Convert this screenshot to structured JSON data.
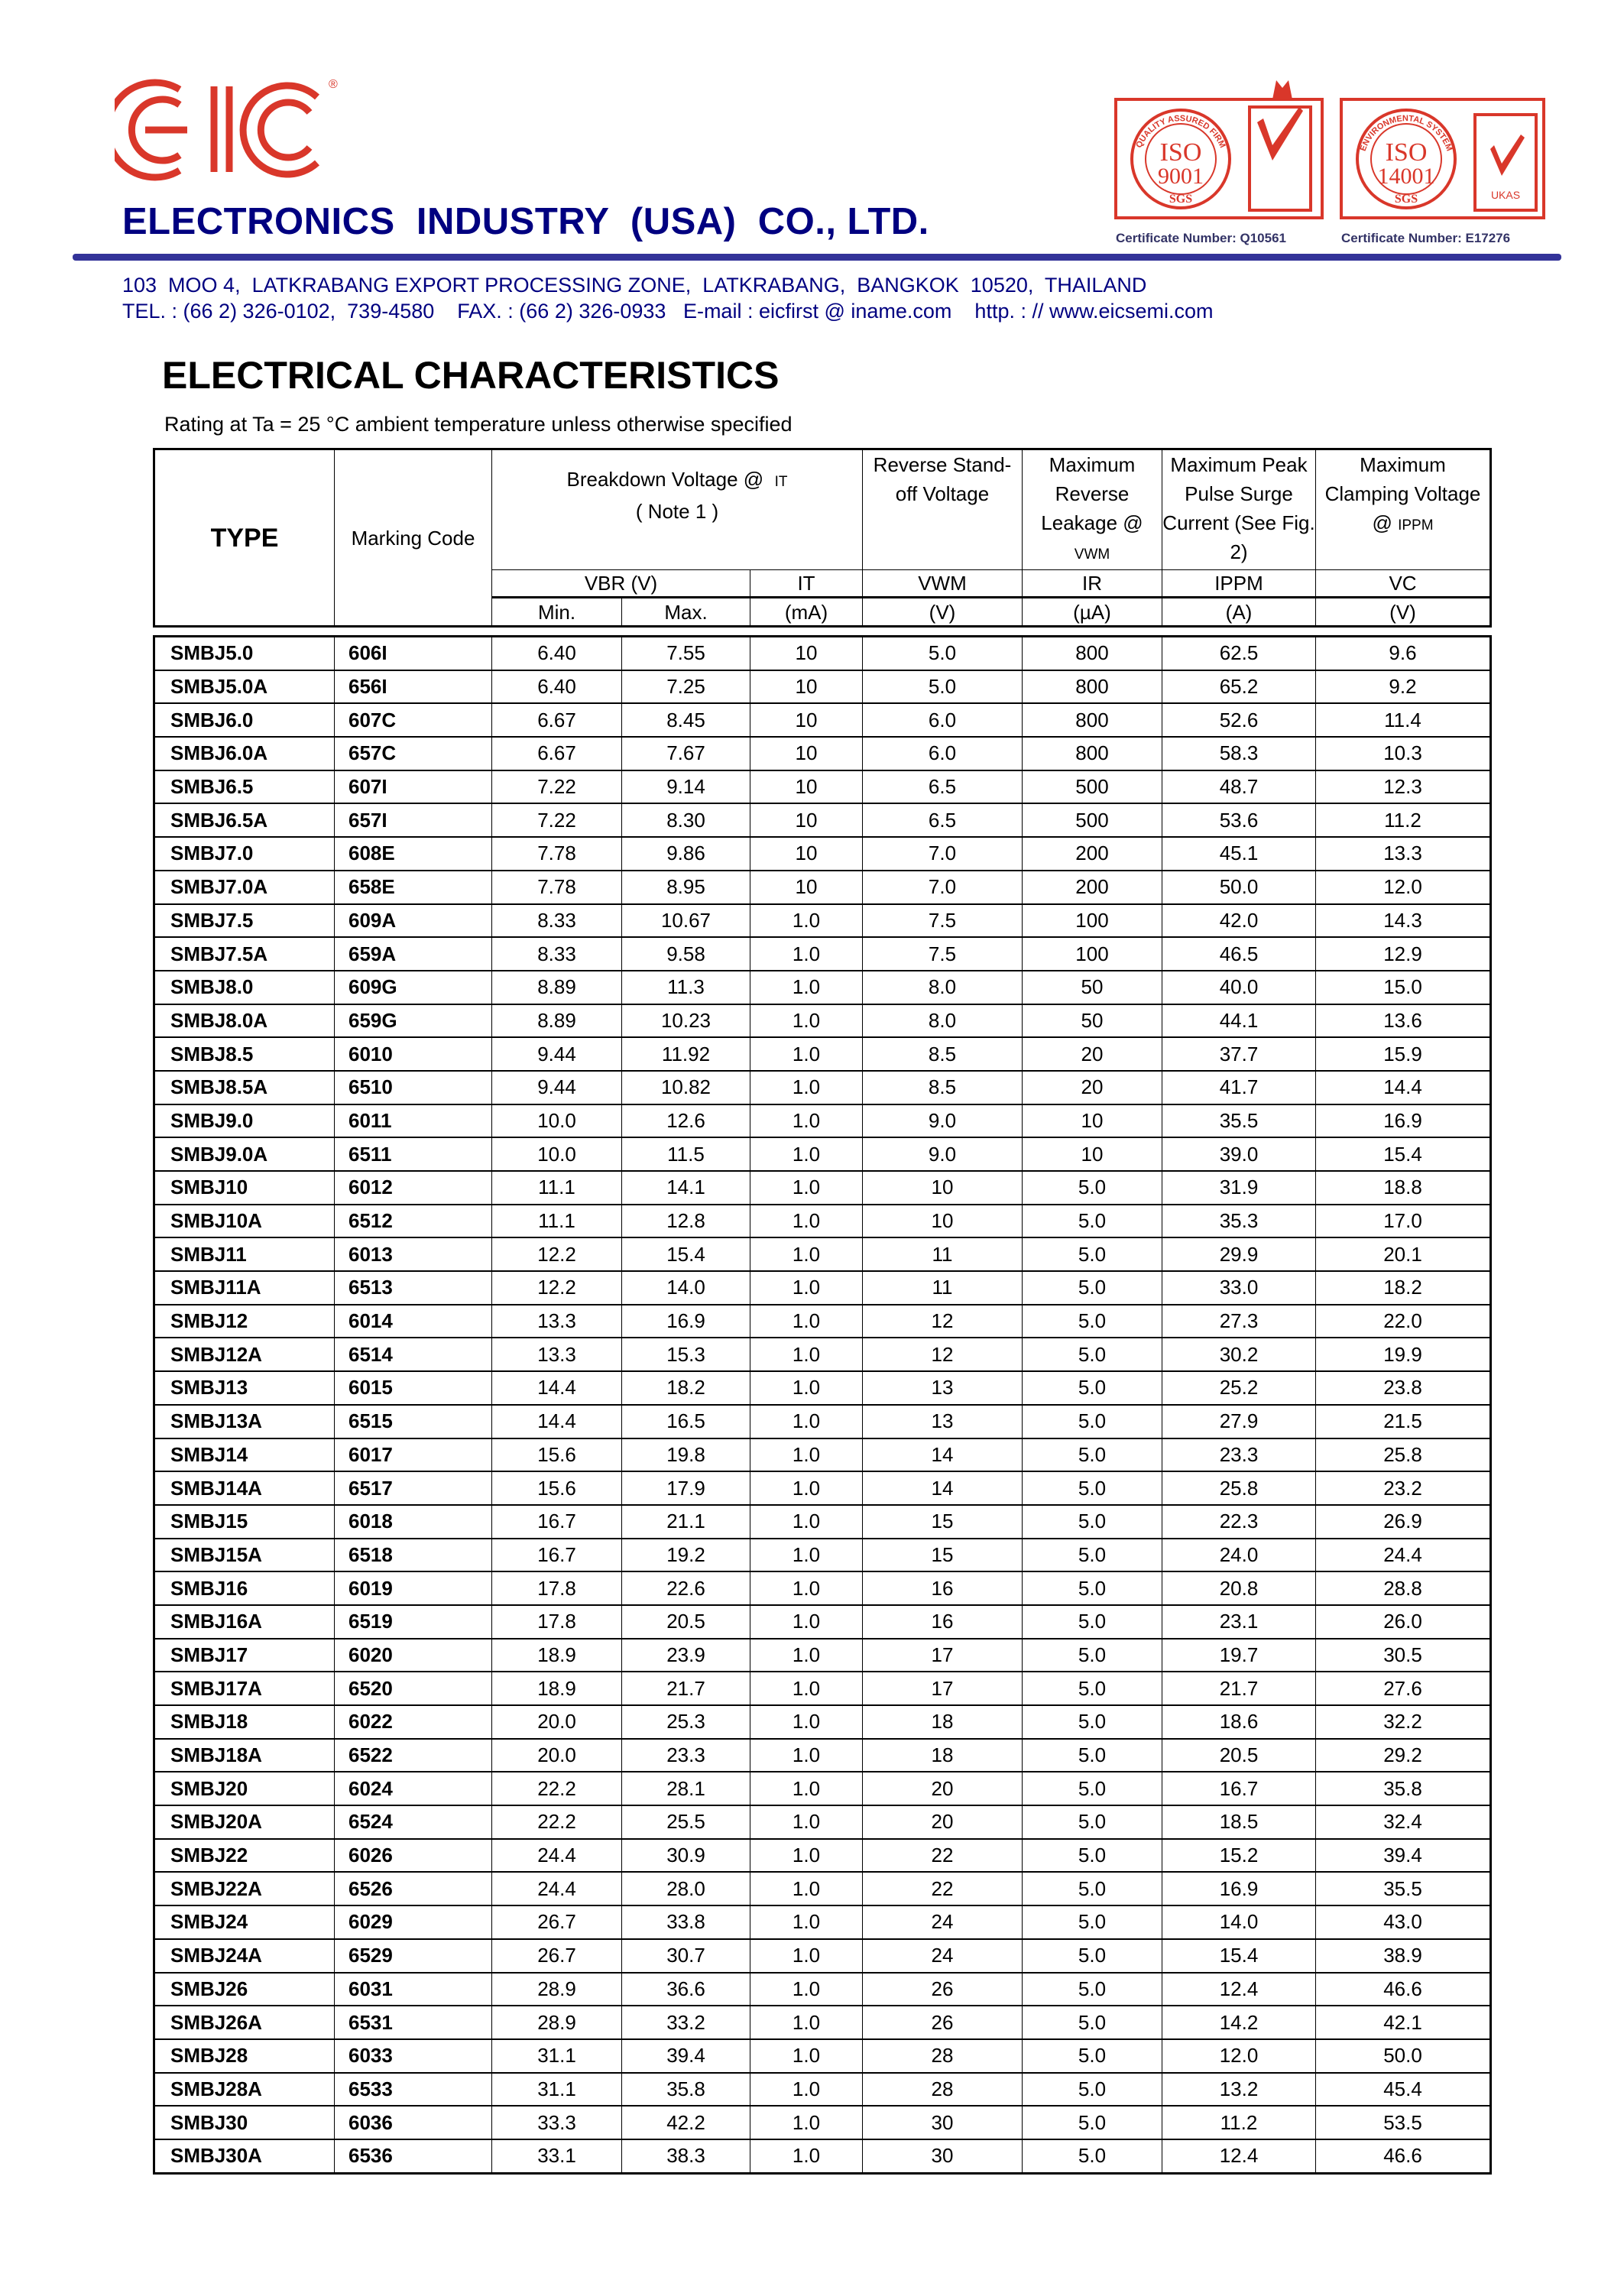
{
  "company": {
    "logo_text": "EIC",
    "name": "ELECTRONICS  INDUSTRY  (USA)  CO., LTD.",
    "address": "103  MOO 4,  LATKRABANG EXPORT PROCESSING ZONE,  LATKRABANG,  BANGKOK  10520,  THAILAND",
    "contact": "TEL. : (66 2) 326-0102,  739-4580    FAX. : (66 2) 326-0933   E-mail : eicfirst @ iname.com    http. : // www.eicsemi.com"
  },
  "certificates": [
    {
      "badge": "ISO 9001",
      "ring": "QUALITY ASSURED FIRM",
      "mark": "SGS",
      "number": "Certificate Number: Q10561"
    },
    {
      "badge": "ISO 14001",
      "ring": "ENVIRONMENTAL SYSTEM",
      "mark": "SGS",
      "accreditor": "UKAS",
      "number": "Certificate Number: E17276"
    }
  ],
  "colors": {
    "logo_red": "#d9372a",
    "navy": "#000080",
    "rule": "#333399"
  },
  "title": "ELECTRICAL CHARACTERISTICS",
  "rating_note": "Rating at Ta = 25 °C ambient temperature unless otherwise specified",
  "table": {
    "headers": {
      "type": "TYPE",
      "marking": "Marking Code",
      "breakdown": "Breakdown Voltage @",
      "breakdown_sym": "IT",
      "breakdown_note": "( Note 1 )",
      "standoff": "Reverse Stand-off Voltage",
      "leakage": "Maximum Reverse Leakage @",
      "leakage_sym": "VWM",
      "surge": "Maximum Peak Pulse Surge Current (See Fig. 2)",
      "clamping": "Maximum Clamping Voltage @",
      "clamping_sym": "IPPM",
      "vbr": "VBR  (V)",
      "it": "IT",
      "vwm": "VWM",
      "ir": "IR",
      "ippm": "IPPM",
      "vc": "VC",
      "min": "Min.",
      "max": "Max.",
      "ma": "(mA)",
      "v1": "(V)",
      "ua": "(µA)",
      "a": "(A)",
      "v2": "(V)"
    },
    "rows": [
      [
        "SMBJ5.0",
        "606I",
        "6.40",
        "7.55",
        "10",
        "5.0",
        "800",
        "62.5",
        "9.6"
      ],
      [
        "SMBJ5.0A",
        "656I",
        "6.40",
        "7.25",
        "10",
        "5.0",
        "800",
        "65.2",
        "9.2"
      ],
      [
        "SMBJ6.0",
        "607C",
        "6.67",
        "8.45",
        "10",
        "6.0",
        "800",
        "52.6",
        "11.4"
      ],
      [
        "SMBJ6.0A",
        "657C",
        "6.67",
        "7.67",
        "10",
        "6.0",
        "800",
        "58.3",
        "10.3"
      ],
      [
        "SMBJ6.5",
        "607I",
        "7.22",
        "9.14",
        "10",
        "6.5",
        "500",
        "48.7",
        "12.3"
      ],
      [
        "SMBJ6.5A",
        "657I",
        "7.22",
        "8.30",
        "10",
        "6.5",
        "500",
        "53.6",
        "11.2"
      ],
      [
        "SMBJ7.0",
        "608E",
        "7.78",
        "9.86",
        "10",
        "7.0",
        "200",
        "45.1",
        "13.3"
      ],
      [
        "SMBJ7.0A",
        "658E",
        "7.78",
        "8.95",
        "10",
        "7.0",
        "200",
        "50.0",
        "12.0"
      ],
      [
        "SMBJ7.5",
        "609A",
        "8.33",
        "10.67",
        "1.0",
        "7.5",
        "100",
        "42.0",
        "14.3"
      ],
      [
        "SMBJ7.5A",
        "659A",
        "8.33",
        "9.58",
        "1.0",
        "7.5",
        "100",
        "46.5",
        "12.9"
      ],
      [
        "SMBJ8.0",
        "609G",
        "8.89",
        "11.3",
        "1.0",
        "8.0",
        "50",
        "40.0",
        "15.0"
      ],
      [
        "SMBJ8.0A",
        "659G",
        "8.89",
        "10.23",
        "1.0",
        "8.0",
        "50",
        "44.1",
        "13.6"
      ],
      [
        "SMBJ8.5",
        "6010",
        "9.44",
        "11.92",
        "1.0",
        "8.5",
        "20",
        "37.7",
        "15.9"
      ],
      [
        "SMBJ8.5A",
        "6510",
        "9.44",
        "10.82",
        "1.0",
        "8.5",
        "20",
        "41.7",
        "14.4"
      ],
      [
        "SMBJ9.0",
        "6011",
        "10.0",
        "12.6",
        "1.0",
        "9.0",
        "10",
        "35.5",
        "16.9"
      ],
      [
        "SMBJ9.0A",
        "6511",
        "10.0",
        "11.5",
        "1.0",
        "9.0",
        "10",
        "39.0",
        "15.4"
      ],
      [
        "SMBJ10",
        "6012",
        "11.1",
        "14.1",
        "1.0",
        "10",
        "5.0",
        "31.9",
        "18.8"
      ],
      [
        "SMBJ10A",
        "6512",
        "11.1",
        "12.8",
        "1.0",
        "10",
        "5.0",
        "35.3",
        "17.0"
      ],
      [
        "SMBJ11",
        "6013",
        "12.2",
        "15.4",
        "1.0",
        "11",
        "5.0",
        "29.9",
        "20.1"
      ],
      [
        "SMBJ11A",
        "6513",
        "12.2",
        "14.0",
        "1.0",
        "11",
        "5.0",
        "33.0",
        "18.2"
      ],
      [
        "SMBJ12",
        "6014",
        "13.3",
        "16.9",
        "1.0",
        "12",
        "5.0",
        "27.3",
        "22.0"
      ],
      [
        "SMBJ12A",
        "6514",
        "13.3",
        "15.3",
        "1.0",
        "12",
        "5.0",
        "30.2",
        "19.9"
      ],
      [
        "SMBJ13",
        "6015",
        "14.4",
        "18.2",
        "1.0",
        "13",
        "5.0",
        "25.2",
        "23.8"
      ],
      [
        "SMBJ13A",
        "6515",
        "14.4",
        "16.5",
        "1.0",
        "13",
        "5.0",
        "27.9",
        "21.5"
      ],
      [
        "SMBJ14",
        "6017",
        "15.6",
        "19.8",
        "1.0",
        "14",
        "5.0",
        "23.3",
        "25.8"
      ],
      [
        "SMBJ14A",
        "6517",
        "15.6",
        "17.9",
        "1.0",
        "14",
        "5.0",
        "25.8",
        "23.2"
      ],
      [
        "SMBJ15",
        "6018",
        "16.7",
        "21.1",
        "1.0",
        "15",
        "5.0",
        "22.3",
        "26.9"
      ],
      [
        "SMBJ15A",
        "6518",
        "16.7",
        "19.2",
        "1.0",
        "15",
        "5.0",
        "24.0",
        "24.4"
      ],
      [
        "SMBJ16",
        "6019",
        "17.8",
        "22.6",
        "1.0",
        "16",
        "5.0",
        "20.8",
        "28.8"
      ],
      [
        "SMBJ16A",
        "6519",
        "17.8",
        "20.5",
        "1.0",
        "16",
        "5.0",
        "23.1",
        "26.0"
      ],
      [
        "SMBJ17",
        "6020",
        "18.9",
        "23.9",
        "1.0",
        "17",
        "5.0",
        "19.7",
        "30.5"
      ],
      [
        "SMBJ17A",
        "6520",
        "18.9",
        "21.7",
        "1.0",
        "17",
        "5.0",
        "21.7",
        "27.6"
      ],
      [
        "SMBJ18",
        "6022",
        "20.0",
        "25.3",
        "1.0",
        "18",
        "5.0",
        "18.6",
        "32.2"
      ],
      [
        "SMBJ18A",
        "6522",
        "20.0",
        "23.3",
        "1.0",
        "18",
        "5.0",
        "20.5",
        "29.2"
      ],
      [
        "SMBJ20",
        "6024",
        "22.2",
        "28.1",
        "1.0",
        "20",
        "5.0",
        "16.7",
        "35.8"
      ],
      [
        "SMBJ20A",
        "6524",
        "22.2",
        "25.5",
        "1.0",
        "20",
        "5.0",
        "18.5",
        "32.4"
      ],
      [
        "SMBJ22",
        "6026",
        "24.4",
        "30.9",
        "1.0",
        "22",
        "5.0",
        "15.2",
        "39.4"
      ],
      [
        "SMBJ22A",
        "6526",
        "24.4",
        "28.0",
        "1.0",
        "22",
        "5.0",
        "16.9",
        "35.5"
      ],
      [
        "SMBJ24",
        "6029",
        "26.7",
        "33.8",
        "1.0",
        "24",
        "5.0",
        "14.0",
        "43.0"
      ],
      [
        "SMBJ24A",
        "6529",
        "26.7",
        "30.7",
        "1.0",
        "24",
        "5.0",
        "15.4",
        "38.9"
      ],
      [
        "SMBJ26",
        "6031",
        "28.9",
        "36.6",
        "1.0",
        "26",
        "5.0",
        "12.4",
        "46.6"
      ],
      [
        "SMBJ26A",
        "6531",
        "28.9",
        "33.2",
        "1.0",
        "26",
        "5.0",
        "14.2",
        "42.1"
      ],
      [
        "SMBJ28",
        "6033",
        "31.1",
        "39.4",
        "1.0",
        "28",
        "5.0",
        "12.0",
        "50.0"
      ],
      [
        "SMBJ28A",
        "6533",
        "31.1",
        "35.8",
        "1.0",
        "28",
        "5.0",
        "13.2",
        "45.4"
      ],
      [
        "SMBJ30",
        "6036",
        "33.3",
        "42.2",
        "1.0",
        "30",
        "5.0",
        "11.2",
        "53.5"
      ],
      [
        "SMBJ30A",
        "6536",
        "33.1",
        "38.3",
        "1.0",
        "30",
        "5.0",
        "12.4",
        "46.6"
      ]
    ]
  }
}
